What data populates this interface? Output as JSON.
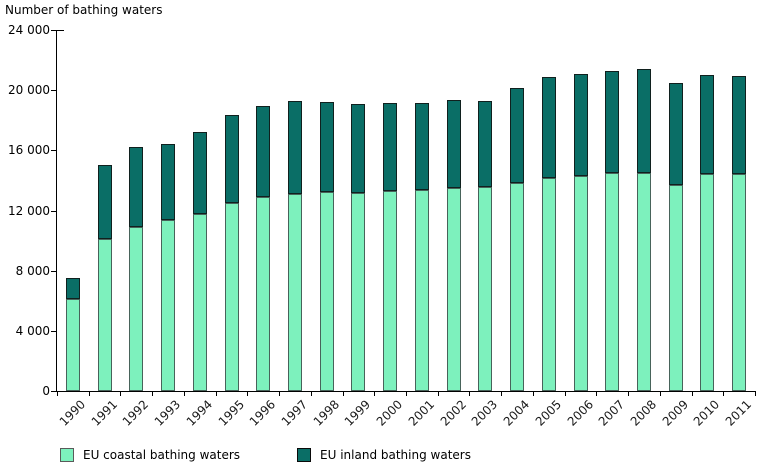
{
  "title": "Number of bathing waters",
  "chart_data": {
    "type": "bar",
    "stacked": true,
    "title": "Number of bathing waters",
    "xlabel": "",
    "ylabel": "Number of bathing waters",
    "ylim": [
      0,
      24000
    ],
    "ytick_values": [
      0,
      4000,
      8000,
      12000,
      16000,
      20000,
      24000
    ],
    "ytick_labels": [
      "0",
      "4 000",
      "8 000",
      "12 000",
      "16 000",
      "20 000",
      "24 000"
    ],
    "grid": false,
    "legend_position": "bottom",
    "categories": [
      "1990",
      "1991",
      "1992",
      "1993",
      "1994",
      "1995",
      "1996",
      "1997",
      "1998",
      "1999",
      "2000",
      "2001",
      "2002",
      "2003",
      "2004",
      "2005",
      "2006",
      "2007",
      "2008",
      "2009",
      "2010",
      "2011"
    ],
    "series": [
      {
        "name": "EU coastal bathing waters",
        "color": "#7df1bd",
        "values": [
          6100,
          10100,
          10900,
          11400,
          11750,
          12500,
          12900,
          13100,
          13200,
          13150,
          13300,
          13350,
          13500,
          13550,
          13850,
          14150,
          14300,
          14500,
          14500,
          13700,
          14450,
          14450
        ]
      },
      {
        "name": "EU inland bathing waters",
        "color": "#0a6e66",
        "values": [
          1400,
          4900,
          5300,
          5050,
          5450,
          5850,
          6050,
          6150,
          6000,
          5950,
          5850,
          5800,
          5850,
          5750,
          6300,
          6750,
          6800,
          6800,
          6900,
          6800,
          6550,
          6500
        ]
      }
    ]
  },
  "colors": {
    "coastal": "#7df1bd",
    "inland": "#0a6e66",
    "axis": "#000000",
    "background": "#ffffff"
  }
}
